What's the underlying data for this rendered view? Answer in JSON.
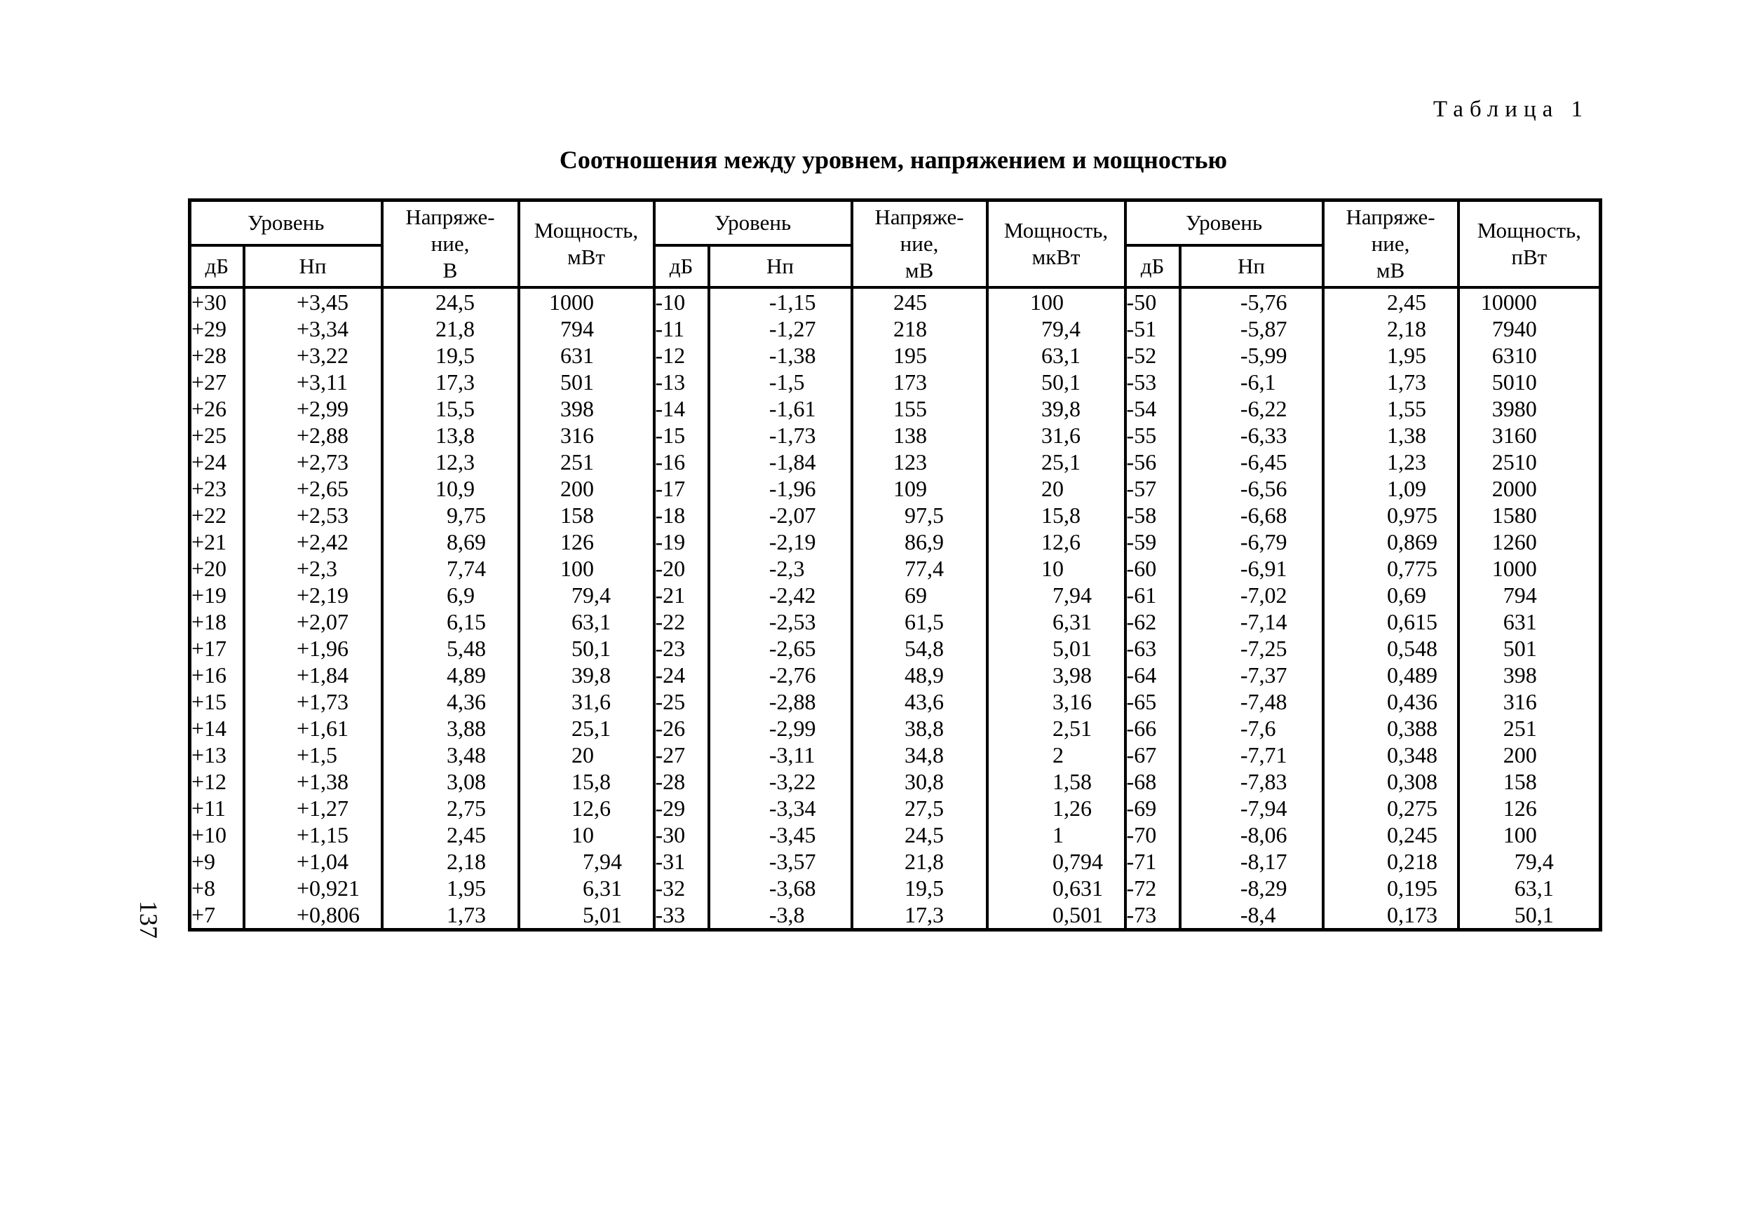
{
  "page": {
    "corner_label": "Таблица 1",
    "page_number": "137"
  },
  "table": {
    "title": "Соотношения между уровнем, напряжением и мощностью",
    "groups": [
      {
        "level": "Уровень",
        "db": "дБ",
        "np": "Нп",
        "voltage": "Напряже-\nние,\nВ",
        "power": "Мощность,\nмВт"
      },
      {
        "level": "Уровень",
        "db": "дБ",
        "np": "Нп",
        "voltage": "Напряже-\nние,\nмВ",
        "power": "Мощность,\nмкВт"
      },
      {
        "level": "Уровень",
        "db": "дБ",
        "np": "Нп",
        "voltage": "Напряже-\nние,\nмВ",
        "power": "Мощность,\nпВт"
      }
    ],
    "rows": [
      [
        "+30",
        "+3,45",
        "24,5",
        "1000",
        "-10",
        "-1,15",
        "245",
        "100",
        "-50",
        "-5,76",
        "2,45",
        "10000"
      ],
      [
        "+29",
        "+3,34",
        "21,8",
        "794",
        "-11",
        "-1,27",
        "218",
        "79,4",
        "-51",
        "-5,87",
        "2,18",
        "7940"
      ],
      [
        "+28",
        "+3,22",
        "19,5",
        "631",
        "-12",
        "-1,38",
        "195",
        "63,1",
        "-52",
        "-5,99",
        "1,95",
        "6310"
      ],
      [
        "+27",
        "+3,11",
        "17,3",
        "501",
        "-13",
        "-1,5",
        "173",
        "50,1",
        "-53",
        "-6,1",
        "1,73",
        "5010"
      ],
      [
        "+26",
        "+2,99",
        "15,5",
        "398",
        "-14",
        "-1,61",
        "155",
        "39,8",
        "-54",
        "-6,22",
        "1,55",
        "3980"
      ],
      [
        "+25",
        "+2,88",
        "13,8",
        "316",
        "-15",
        "-1,73",
        "138",
        "31,6",
        "-55",
        "-6,33",
        "1,38",
        "3160"
      ],
      [
        "+24",
        "+2,73",
        "12,3",
        "251",
        "-16",
        "-1,84",
        "123",
        "25,1",
        "-56",
        "-6,45",
        "1,23",
        "2510"
      ],
      [
        "+23",
        "+2,65",
        "10,9",
        "200",
        "-17",
        "-1,96",
        "109",
        "20",
        "-57",
        "-6,56",
        "1,09",
        "2000"
      ],
      [
        "+22",
        "+2,53",
        "9,75",
        "158",
        "-18",
        "-2,07",
        "97,5",
        "15,8",
        "-58",
        "-6,68",
        "0,975",
        "1580"
      ],
      [
        "+21",
        "+2,42",
        "8,69",
        "126",
        "-19",
        "-2,19",
        "86,9",
        "12,6",
        "-59",
        "-6,79",
        "0,869",
        "1260"
      ],
      [
        "+20",
        "+2,3",
        "7,74",
        "100",
        "-20",
        "-2,3",
        "77,4",
        "10",
        "-60",
        "-6,91",
        "0,775",
        "1000"
      ],
      [
        "+19",
        "+2,19",
        "6,9",
        "79,4",
        "-21",
        "-2,42",
        "69",
        "7,94",
        "-61",
        "-7,02",
        "0,69",
        "794"
      ],
      [
        "+18",
        "+2,07",
        "6,15",
        "63,1",
        "-22",
        "-2,53",
        "61,5",
        "6,31",
        "-62",
        "-7,14",
        "0,615",
        "631"
      ],
      [
        "+17",
        "+1,96",
        "5,48",
        "50,1",
        "-23",
        "-2,65",
        "54,8",
        "5,01",
        "-63",
        "-7,25",
        "0,548",
        "501"
      ],
      [
        "+16",
        "+1,84",
        "4,89",
        "39,8",
        "-24",
        "-2,76",
        "48,9",
        "3,98",
        "-64",
        "-7,37",
        "0,489",
        "398"
      ],
      [
        "+15",
        "+1,73",
        "4,36",
        "31,6",
        "-25",
        "-2,88",
        "43,6",
        "3,16",
        "-65",
        "-7,48",
        "0,436",
        "316"
      ],
      [
        "+14",
        "+1,61",
        "3,88",
        "25,1",
        "-26",
        "-2,99",
        "38,8",
        "2,51",
        "-66",
        "-7,6",
        "0,388",
        "251"
      ],
      [
        "+13",
        "+1,5",
        "3,48",
        "20",
        "-27",
        "-3,11",
        "34,8",
        "2",
        "-67",
        "-7,71",
        "0,348",
        "200"
      ],
      [
        "+12",
        "+1,38",
        "3,08",
        "15,8",
        "-28",
        "-3,22",
        "30,8",
        "1,58",
        "-68",
        "-7,83",
        "0,308",
        "158"
      ],
      [
        "+11",
        "+1,27",
        "2,75",
        "12,6",
        "-29",
        "-3,34",
        "27,5",
        "1,26",
        "-69",
        "-7,94",
        "0,275",
        "126"
      ],
      [
        "+10",
        "+1,15",
        "2,45",
        "10",
        "-30",
        "-3,45",
        "24,5",
        "1",
        "-70",
        "-8,06",
        "0,245",
        "100"
      ],
      [
        "+9",
        "+1,04",
        "2,18",
        "7,94",
        "-31",
        "-3,57",
        "21,8",
        "0,794",
        "-71",
        "-8,17",
        "0,218",
        "79,4"
      ],
      [
        "+8",
        "+0,921",
        "1,95",
        "6,31",
        "-32",
        "-3,68",
        "19,5",
        "0,631",
        "-72",
        "-8,29",
        "0,195",
        "63,1"
      ],
      [
        "+7",
        "+0,806",
        "1,73",
        "5,01",
        "-33",
        "-3,8",
        "17,3",
        "0,501",
        "-73",
        "-8,4",
        "0,173",
        "50,1"
      ]
    ]
  }
}
